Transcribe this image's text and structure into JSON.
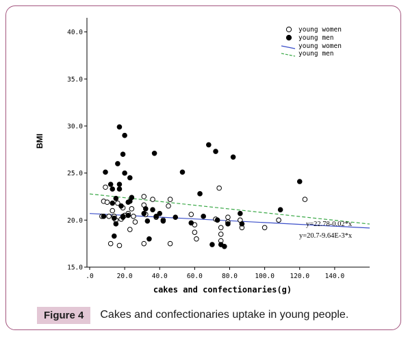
{
  "caption": {
    "label": "Figure 4",
    "text": "Cakes and confectionaries uptake in young people."
  },
  "chart_data": {
    "type": "scatter",
    "xlabel": "cakes and confectionaries(g)",
    "ylabel": "BMI",
    "xlim": [
      0,
      160
    ],
    "ylim": [
      15,
      41.5
    ],
    "x_ticks": [
      0,
      20,
      40,
      60,
      80,
      100,
      120,
      140
    ],
    "x_tick_labels": [
      ".0",
      "20.0",
      "40.0",
      "60.0",
      "80.0",
      "100.0",
      "120.0",
      "140.0"
    ],
    "y_ticks": [
      15,
      20,
      25,
      30,
      35,
      40
    ],
    "y_tick_labels": [
      "15.0",
      "20.0",
      "25.0",
      "30.0",
      "35.0",
      "40.0"
    ],
    "grid": false,
    "legend_position": "top-right",
    "legend": [
      {
        "label": "young women",
        "marker": "open-circle"
      },
      {
        "label": "young men",
        "marker": "filled-circle"
      },
      {
        "label": "young women",
        "line": "solid",
        "color": "#3a4ec9"
      },
      {
        "label": "young men",
        "line": "dashed",
        "color": "#39a846"
      }
    ],
    "series": [
      {
        "name": "young women",
        "marker": "open",
        "points": [
          [
            7,
            20.4
          ],
          [
            8,
            22
          ],
          [
            9,
            23.5
          ],
          [
            10,
            21.9
          ],
          [
            11,
            20.4
          ],
          [
            12,
            17.5
          ],
          [
            13,
            21
          ],
          [
            14,
            20.4
          ],
          [
            15,
            20
          ],
          [
            16,
            21.8
          ],
          [
            17,
            17.3
          ],
          [
            18,
            20.1
          ],
          [
            19,
            21.3
          ],
          [
            20,
            20.5
          ],
          [
            22,
            20.7
          ],
          [
            23,
            19
          ],
          [
            24,
            21.2
          ],
          [
            25,
            20.4
          ],
          [
            26,
            19.8
          ],
          [
            31,
            22.5
          ],
          [
            31,
            21.6
          ],
          [
            32,
            20.6
          ],
          [
            31,
            17.5
          ],
          [
            36,
            22.2
          ],
          [
            38,
            20.3
          ],
          [
            42,
            20
          ],
          [
            45,
            21.5
          ],
          [
            46,
            22.2
          ],
          [
            46,
            17.5
          ],
          [
            58,
            20.6
          ],
          [
            60,
            19.5
          ],
          [
            60,
            18.7
          ],
          [
            61,
            18
          ],
          [
            72,
            20.1
          ],
          [
            74,
            23.4
          ],
          [
            75,
            19.2
          ],
          [
            75,
            18.5
          ],
          [
            75,
            17.8
          ],
          [
            79,
            20.3
          ],
          [
            79,
            19.8
          ],
          [
            86,
            20
          ],
          [
            87,
            19.2
          ],
          [
            100,
            19.2
          ],
          [
            108,
            20
          ],
          [
            123,
            22.2
          ]
        ]
      },
      {
        "name": "young men",
        "marker": "filled",
        "points": [
          [
            8,
            20.4
          ],
          [
            9,
            25.1
          ],
          [
            12,
            23.8
          ],
          [
            13,
            21.8
          ],
          [
            13,
            23.3
          ],
          [
            14,
            20.2
          ],
          [
            15,
            19.6
          ],
          [
            14,
            18.3
          ],
          [
            15,
            22.3
          ],
          [
            16,
            26
          ],
          [
            17,
            23.8
          ],
          [
            17,
            23.3
          ],
          [
            17,
            29.9
          ],
          [
            18,
            21.5
          ],
          [
            19,
            20.4
          ],
          [
            19,
            20.3
          ],
          [
            19,
            27
          ],
          [
            20,
            25
          ],
          [
            20,
            29
          ],
          [
            22,
            21.9
          ],
          [
            22,
            20.5
          ],
          [
            23,
            22
          ],
          [
            23,
            24.5
          ],
          [
            24,
            22.4
          ],
          [
            31,
            20.7
          ],
          [
            32,
            21.2
          ],
          [
            33,
            19.9
          ],
          [
            34,
            18
          ],
          [
            36,
            21.1
          ],
          [
            37,
            27.1
          ],
          [
            38,
            20.4
          ],
          [
            40,
            20.7
          ],
          [
            42,
            19.9
          ],
          [
            49,
            20.3
          ],
          [
            53,
            25.1
          ],
          [
            58,
            19.7
          ],
          [
            63,
            22.8
          ],
          [
            65,
            20.4
          ],
          [
            68,
            28
          ],
          [
            70,
            17.4
          ],
          [
            72,
            27.3
          ],
          [
            73,
            20
          ],
          [
            75,
            17.4
          ],
          [
            77,
            17.2
          ],
          [
            79,
            19.6
          ],
          [
            82,
            26.7
          ],
          [
            86,
            20.7
          ],
          [
            87,
            19.6
          ],
          [
            109,
            21.1
          ],
          [
            120,
            24.1
          ]
        ]
      }
    ],
    "fit_lines": [
      {
        "name": "young women",
        "intercept": 20.7,
        "slope": -0.00964,
        "label": "y=20.7-9.64E-3*x"
      },
      {
        "name": "young men",
        "intercept": 22.78,
        "slope": -0.02,
        "label": "y=22.78-0.02*x"
      }
    ]
  }
}
